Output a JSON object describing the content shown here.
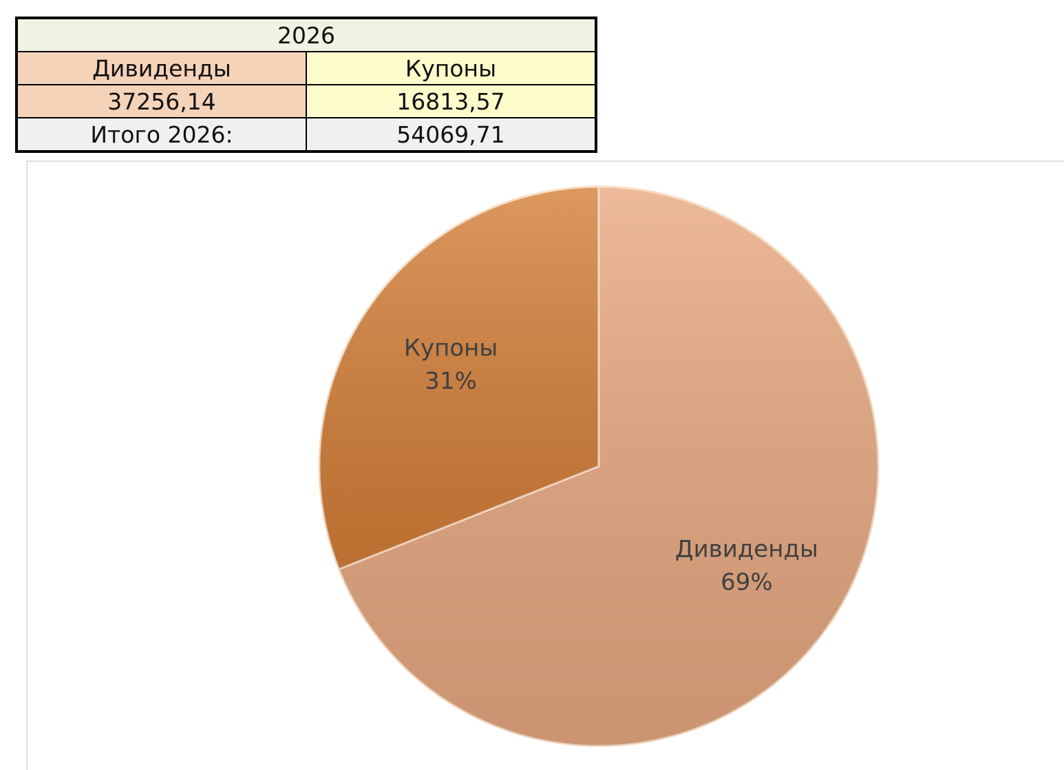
{
  "table": {
    "title": "2026",
    "headers": [
      "Дивиденды",
      "Купоны"
    ],
    "values": [
      "37256,14",
      "16813,57"
    ],
    "total": [
      "Итого 2026:",
      "54069,71"
    ]
  },
  "chart_data": {
    "type": "pie",
    "categories": [
      "Дивиденды",
      "Купоны"
    ],
    "values": [
      69,
      31
    ],
    "value_labels": [
      "69%",
      "31%"
    ],
    "colors": [
      "#e8a880",
      "#d57f38"
    ]
  }
}
